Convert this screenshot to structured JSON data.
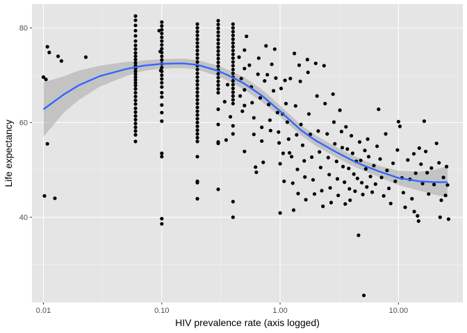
{
  "chart_data": {
    "type": "scatter",
    "title": "",
    "xlabel": "HIV prevalence rate (axis logged)",
    "ylabel": "Life expectancy",
    "x_scale": "log10",
    "xlim": [
      0.008,
      35
    ],
    "ylim": [
      22,
      85
    ],
    "x_ticks": [
      0.01,
      0.1,
      1,
      10
    ],
    "x_tick_labels": [
      "0.01",
      "0.10",
      "1.00",
      "10.00"
    ],
    "y_ticks": [
      40,
      60,
      80
    ],
    "y_tick_labels": [
      "40",
      "60",
      "80"
    ],
    "grid": true,
    "legend": "none",
    "colors": {
      "panel_background": "#e5e5e5",
      "grid_major": "#ffffff",
      "grid_minor": "#f2f2f2",
      "points": "#000000",
      "smooth_line": "#3366ff",
      "confidence_band": "#999999"
    },
    "points": [
      [
        0.01,
        69.6
      ],
      [
        0.0105,
        69.1
      ],
      [
        0.0108,
        76.0
      ],
      [
        0.0112,
        74.8
      ],
      [
        0.0108,
        55.5
      ],
      [
        0.0102,
        44.5
      ],
      [
        0.0125,
        44.0
      ],
      [
        0.0133,
        74.0
      ],
      [
        0.0142,
        73.0
      ],
      [
        0.0228,
        73.8
      ],
      [
        0.06,
        82.5
      ],
      [
        0.06,
        81.6
      ],
      [
        0.06,
        80.5
      ],
      [
        0.06,
        79.4
      ],
      [
        0.06,
        78.3
      ],
      [
        0.06,
        77.2
      ],
      [
        0.06,
        76.3
      ],
      [
        0.06,
        75.5
      ],
      [
        0.06,
        74.7
      ],
      [
        0.06,
        74.0
      ],
      [
        0.06,
        73.3
      ],
      [
        0.06,
        72.6
      ],
      [
        0.06,
        72.0
      ],
      [
        0.06,
        71.4
      ],
      [
        0.06,
        70.8
      ],
      [
        0.06,
        70.2
      ],
      [
        0.06,
        69.6
      ],
      [
        0.06,
        69.0
      ],
      [
        0.06,
        68.4
      ],
      [
        0.06,
        67.8
      ],
      [
        0.06,
        67.1
      ],
      [
        0.06,
        66.3
      ],
      [
        0.06,
        65.5
      ],
      [
        0.06,
        64.7
      ],
      [
        0.06,
        63.9
      ],
      [
        0.06,
        63.0
      ],
      [
        0.06,
        62.2
      ],
      [
        0.06,
        61.4
      ],
      [
        0.06,
        60.6
      ],
      [
        0.06,
        59.8
      ],
      [
        0.06,
        59.0
      ],
      [
        0.06,
        58.2
      ],
      [
        0.06,
        57.4
      ],
      [
        0.06,
        56.0
      ],
      [
        0.1,
        81.2
      ],
      [
        0.1,
        80.4
      ],
      [
        0.1,
        79.6
      ],
      [
        0.1,
        78.8
      ],
      [
        0.1,
        78.0
      ],
      [
        0.1,
        77.2
      ],
      [
        0.1,
        76.4
      ],
      [
        0.1,
        75.6
      ],
      [
        0.1,
        74.8
      ],
      [
        0.1,
        74.0
      ],
      [
        0.1,
        73.2
      ],
      [
        0.1,
        72.4
      ],
      [
        0.1,
        71.6
      ],
      [
        0.1,
        70.8
      ],
      [
        0.1,
        70.0
      ],
      [
        0.1,
        69.2
      ],
      [
        0.1,
        68.4
      ],
      [
        0.1,
        67.5
      ],
      [
        0.1,
        66.3
      ],
      [
        0.1,
        65.4
      ],
      [
        0.1,
        63.7
      ],
      [
        0.1,
        62.1
      ],
      [
        0.1,
        60.3
      ],
      [
        0.1,
        53.5
      ],
      [
        0.1,
        52.8
      ],
      [
        0.1,
        39.7
      ],
      [
        0.1,
        38.6
      ],
      [
        0.095,
        79.4
      ],
      [
        0.098,
        71.0
      ],
      [
        0.097,
        75.0
      ],
      [
        0.2,
        80.8
      ],
      [
        0.2,
        80.0
      ],
      [
        0.2,
        79.2
      ],
      [
        0.2,
        78.4
      ],
      [
        0.2,
        77.6
      ],
      [
        0.2,
        76.8
      ],
      [
        0.2,
        76.0
      ],
      [
        0.2,
        75.2
      ],
      [
        0.2,
        74.4
      ],
      [
        0.2,
        73.6
      ],
      [
        0.2,
        72.8
      ],
      [
        0.2,
        72.0
      ],
      [
        0.2,
        71.2
      ],
      [
        0.2,
        70.4
      ],
      [
        0.2,
        69.6
      ],
      [
        0.2,
        68.8
      ],
      [
        0.2,
        68.0
      ],
      [
        0.2,
        67.2
      ],
      [
        0.2,
        66.4
      ],
      [
        0.2,
        65.6
      ],
      [
        0.2,
        64.8
      ],
      [
        0.2,
        64.0
      ],
      [
        0.2,
        63.2
      ],
      [
        0.2,
        62.4
      ],
      [
        0.2,
        61.6
      ],
      [
        0.2,
        60.8
      ],
      [
        0.2,
        60.0
      ],
      [
        0.2,
        59.2
      ],
      [
        0.2,
        58.4
      ],
      [
        0.2,
        57.6
      ],
      [
        0.2,
        56.8
      ],
      [
        0.2,
        56.0
      ],
      [
        0.2,
        52.8
      ],
      [
        0.2,
        47.6
      ],
      [
        0.2,
        47.3
      ],
      [
        0.2,
        43.9
      ],
      [
        0.3,
        81.5
      ],
      [
        0.3,
        80.7
      ],
      [
        0.3,
        79.9
      ],
      [
        0.3,
        79.1
      ],
      [
        0.3,
        78.3
      ],
      [
        0.3,
        77.5
      ],
      [
        0.3,
        76.7
      ],
      [
        0.3,
        75.9
      ],
      [
        0.3,
        75.1
      ],
      [
        0.3,
        74.3
      ],
      [
        0.3,
        73.5
      ],
      [
        0.3,
        72.7
      ],
      [
        0.3,
        71.9
      ],
      [
        0.3,
        71.1
      ],
      [
        0.3,
        70.3
      ],
      [
        0.3,
        69.5
      ],
      [
        0.3,
        68.7
      ],
      [
        0.3,
        67.9
      ],
      [
        0.3,
        67.1
      ],
      [
        0.3,
        66.3
      ],
      [
        0.3,
        62.8
      ],
      [
        0.3,
        59.6
      ],
      [
        0.3,
        55.9
      ],
      [
        0.3,
        55.6
      ],
      [
        0.3,
        45.9
      ],
      [
        0.4,
        80.8
      ],
      [
        0.4,
        80.0
      ],
      [
        0.4,
        79.2
      ],
      [
        0.4,
        78.4
      ],
      [
        0.4,
        77.6
      ],
      [
        0.4,
        76.8
      ],
      [
        0.4,
        76.0
      ],
      [
        0.4,
        75.2
      ],
      [
        0.4,
        74.4
      ],
      [
        0.4,
        73.6
      ],
      [
        0.4,
        72.8
      ],
      [
        0.4,
        72.0
      ],
      [
        0.4,
        71.2
      ],
      [
        0.4,
        70.4
      ],
      [
        0.4,
        69.6
      ],
      [
        0.4,
        68.8
      ],
      [
        0.4,
        68.0
      ],
      [
        0.4,
        67.2
      ],
      [
        0.4,
        66.4
      ],
      [
        0.4,
        65.6
      ],
      [
        0.4,
        64.8
      ],
      [
        0.4,
        64.0
      ],
      [
        0.4,
        59.3
      ],
      [
        0.4,
        57.6
      ],
      [
        0.4,
        43.3
      ],
      [
        0.4,
        40.0
      ],
      [
        0.34,
        64.4
      ],
      [
        0.36,
        68.0
      ],
      [
        0.38,
        61.2
      ],
      [
        0.35,
        56.3
      ],
      [
        0.45,
        73.8
      ],
      [
        0.46,
        65.6
      ],
      [
        0.47,
        69.3
      ],
      [
        0.48,
        62.4
      ],
      [
        0.5,
        75.3
      ],
      [
        0.5,
        71.4
      ],
      [
        0.5,
        66.9
      ],
      [
        0.5,
        63.6
      ],
      [
        0.5,
        53.9
      ],
      [
        0.52,
        78.2
      ],
      [
        0.55,
        72.1
      ],
      [
        0.57,
        67.5
      ],
      [
        0.58,
        64.2
      ],
      [
        0.6,
        61.0
      ],
      [
        0.6,
        57.5
      ],
      [
        0.62,
        50.6
      ],
      [
        0.63,
        49.5
      ],
      [
        0.65,
        70.2
      ],
      [
        0.66,
        73.6
      ],
      [
        0.68,
        65.2
      ],
      [
        0.7,
        59.0
      ],
      [
        0.7,
        56.1
      ],
      [
        0.72,
        51.6
      ],
      [
        0.74,
        68.8
      ],
      [
        0.76,
        76.2
      ],
      [
        0.78,
        70.1
      ],
      [
        0.8,
        63.8
      ],
      [
        0.82,
        60.5
      ],
      [
        0.83,
        58.3
      ],
      [
        0.85,
        72.3
      ],
      [
        0.88,
        66.7
      ],
      [
        0.9,
        75.5
      ],
      [
        0.92,
        69.4
      ],
      [
        0.95,
        62.1
      ],
      [
        0.97,
        58.0
      ],
      [
        0.98,
        55.7
      ],
      [
        1.0,
        51.3
      ],
      [
        1.0,
        40.9
      ],
      [
        1.02,
        67.2
      ],
      [
        1.05,
        61.8
      ],
      [
        1.06,
        53.5
      ],
      [
        1.08,
        47.6
      ],
      [
        1.1,
        68.9
      ],
      [
        1.12,
        64.0
      ],
      [
        1.15,
        60.1
      ],
      [
        1.18,
        56.5
      ],
      [
        1.2,
        53.6
      ],
      [
        1.22,
        69.3
      ],
      [
        1.25,
        52.8
      ],
      [
        1.28,
        47.2
      ],
      [
        1.3,
        41.5
      ],
      [
        1.32,
        74.6
      ],
      [
        1.35,
        63.5
      ],
      [
        1.38,
        57.4
      ],
      [
        1.4,
        50.1
      ],
      [
        1.42,
        45.0
      ],
      [
        1.45,
        72.1
      ],
      [
        1.48,
        68.7
      ],
      [
        1.5,
        59.6
      ],
      [
        1.55,
        55.2
      ],
      [
        1.6,
        51.9
      ],
      [
        1.62,
        48.5
      ],
      [
        1.65,
        43.7
      ],
      [
        1.7,
        73.3
      ],
      [
        1.72,
        70.6
      ],
      [
        1.75,
        61.8
      ],
      [
        1.8,
        57.5
      ],
      [
        1.85,
        52.7
      ],
      [
        1.9,
        47.9
      ],
      [
        1.95,
        44.9
      ],
      [
        2.0,
        72.5
      ],
      [
        2.05,
        65.6
      ],
      [
        2.1,
        58.2
      ],
      [
        2.15,
        53.8
      ],
      [
        2.2,
        50.5
      ],
      [
        2.25,
        45.6
      ],
      [
        2.3,
        42.3
      ],
      [
        2.35,
        72.0
      ],
      [
        2.4,
        64.0
      ],
      [
        2.5,
        57.6
      ],
      [
        2.55,
        52.6
      ],
      [
        2.6,
        49.0
      ],
      [
        2.65,
        46.2
      ],
      [
        2.7,
        43.1
      ],
      [
        2.8,
        66.0
      ],
      [
        2.85,
        60.1
      ],
      [
        2.9,
        55.5
      ],
      [
        3.0,
        51.8
      ],
      [
        3.05,
        48.1
      ],
      [
        3.1,
        44.6
      ],
      [
        3.2,
        62.6
      ],
      [
        3.3,
        58.1
      ],
      [
        3.35,
        54.7
      ],
      [
        3.4,
        50.7
      ],
      [
        3.5,
        47.4
      ],
      [
        3.55,
        42.8
      ],
      [
        3.6,
        59.1
      ],
      [
        3.7,
        54.4
      ],
      [
        3.8,
        50.3
      ],
      [
        3.85,
        46.0
      ],
      [
        3.9,
        43.6
      ],
      [
        4.0,
        57.2
      ],
      [
        4.1,
        53.5
      ],
      [
        4.2,
        49.1
      ],
      [
        4.3,
        45.5
      ],
      [
        4.4,
        51.8
      ],
      [
        4.5,
        48.2
      ],
      [
        4.6,
        36.2
      ],
      [
        4.7,
        55.9
      ],
      [
        4.8,
        52.0
      ],
      [
        4.9,
        47.3
      ],
      [
        5.0,
        44.8
      ],
      [
        5.1,
        23.5
      ],
      [
        5.2,
        54.1
      ],
      [
        5.3,
        50.2
      ],
      [
        5.4,
        46.4
      ],
      [
        5.5,
        56.5
      ],
      [
        5.6,
        52.8
      ],
      [
        5.8,
        48.6
      ],
      [
        6.0,
        45.3
      ],
      [
        6.2,
        50.9
      ],
      [
        6.4,
        47.0
      ],
      [
        6.6,
        55.0
      ],
      [
        6.8,
        62.8
      ],
      [
        7.0,
        52.3
      ],
      [
        7.2,
        48.4
      ],
      [
        7.5,
        44.5
      ],
      [
        7.8,
        57.6
      ],
      [
        8.0,
        49.9
      ],
      [
        8.3,
        46.1
      ],
      [
        8.6,
        42.9
      ],
      [
        9.0,
        51.4
      ],
      [
        9.4,
        47.6
      ],
      [
        9.8,
        54.2
      ],
      [
        10.0,
        60.2
      ],
      [
        10.3,
        59.2
      ],
      [
        10.7,
        48.3
      ],
      [
        11.0,
        45.2
      ],
      [
        11.4,
        42.1
      ],
      [
        12.0,
        52.1
      ],
      [
        12.5,
        48.0
      ],
      [
        13.0,
        43.9
      ],
      [
        13.5,
        53.4
      ],
      [
        14.0,
        49.3
      ],
      [
        14.5,
        40.3
      ],
      [
        15.0,
        54.6
      ],
      [
        15.5,
        51.2
      ],
      [
        16.0,
        47.1
      ],
      [
        16.5,
        60.3
      ],
      [
        17.0,
        53.9
      ],
      [
        17.5,
        49.4
      ],
      [
        18.0,
        44.9
      ],
      [
        19.0,
        50.4
      ],
      [
        20.0,
        46.9
      ],
      [
        21.0,
        55.6
      ],
      [
        22.0,
        51.5
      ],
      [
        22.5,
        40.0
      ],
      [
        23.0,
        43.6
      ],
      [
        24.0,
        48.4
      ],
      [
        25.0,
        44.6
      ],
      [
        25.5,
        50.7
      ],
      [
        26.0,
        46.8
      ],
      [
        26.5,
        39.6
      ],
      [
        14.8,
        39.2
      ],
      [
        13.6,
        41.2
      ]
    ],
    "smooth_line": [
      [
        0.01,
        62.8
      ],
      [
        0.015,
        66.0
      ],
      [
        0.02,
        67.9
      ],
      [
        0.03,
        69.8
      ],
      [
        0.05,
        71.3
      ],
      [
        0.07,
        72.0
      ],
      [
        0.1,
        72.4
      ],
      [
        0.15,
        72.5
      ],
      [
        0.2,
        72.2
      ],
      [
        0.3,
        70.9
      ],
      [
        0.4,
        69.5
      ],
      [
        0.5,
        68.2
      ],
      [
        0.7,
        65.7
      ],
      [
        1.0,
        62.4
      ],
      [
        1.5,
        58.4
      ],
      [
        2.0,
        56.2
      ],
      [
        3.0,
        53.7
      ],
      [
        4.0,
        52.1
      ],
      [
        5.0,
        51.0
      ],
      [
        7.0,
        49.6
      ],
      [
        10.0,
        48.3
      ],
      [
        15.0,
        47.6
      ],
      [
        20.0,
        47.4
      ],
      [
        26.0,
        47.4
      ]
    ],
    "confidence_band": [
      [
        0.01,
        57.0,
        68.5
      ],
      [
        0.015,
        62.2,
        69.8
      ],
      [
        0.02,
        64.8,
        71.0
      ],
      [
        0.03,
        67.6,
        72.0
      ],
      [
        0.05,
        69.8,
        72.8
      ],
      [
        0.07,
        70.9,
        73.1
      ],
      [
        0.1,
        71.4,
        73.4
      ],
      [
        0.15,
        71.5,
        73.5
      ],
      [
        0.2,
        71.2,
        73.2
      ],
      [
        0.3,
        69.8,
        72.0
      ],
      [
        0.4,
        68.3,
        70.7
      ],
      [
        0.5,
        66.9,
        69.5
      ],
      [
        0.7,
        64.4,
        67.0
      ],
      [
        1.0,
        61.2,
        63.6
      ],
      [
        1.5,
        57.3,
        59.5
      ],
      [
        2.0,
        55.1,
        57.3
      ],
      [
        3.0,
        52.6,
        54.8
      ],
      [
        4.0,
        51.0,
        53.2
      ],
      [
        5.0,
        49.9,
        52.1
      ],
      [
        7.0,
        48.4,
        50.8
      ],
      [
        10.0,
        46.8,
        49.8
      ],
      [
        15.0,
        45.6,
        49.6
      ],
      [
        20.0,
        44.8,
        50.0
      ],
      [
        26.0,
        44.2,
        50.8
      ]
    ]
  }
}
